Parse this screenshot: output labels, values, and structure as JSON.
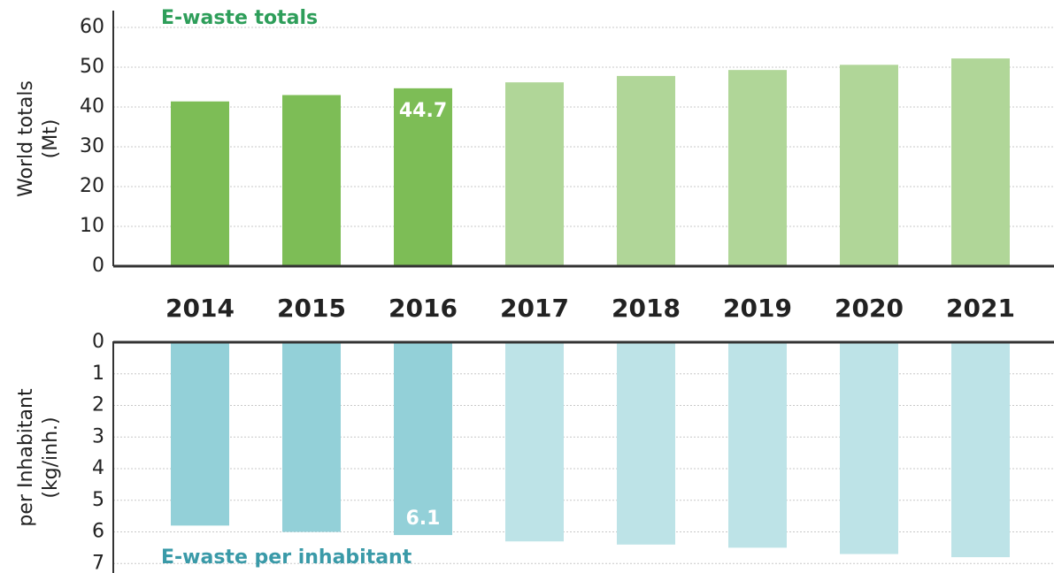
{
  "chart_data": [
    {
      "type": "bar",
      "title": "E-waste totals",
      "ylabel": [
        "World totals",
        "(Mt)"
      ],
      "categories": [
        "2014",
        "2015",
        "2016",
        "2017",
        "2018",
        "2019",
        "2020",
        "2021"
      ],
      "values": [
        41.4,
        43.0,
        44.7,
        46.2,
        47.8,
        49.3,
        50.6,
        52.2
      ],
      "value_labels": [
        null,
        null,
        "44.7",
        null,
        null,
        null,
        null,
        null
      ],
      "colors": [
        "#7dbd56",
        "#7dbd56",
        "#7dbd56",
        "#b0d698",
        "#b0d698",
        "#b0d698",
        "#b0d698",
        "#b0d698"
      ],
      "title_color": "#2e9e5a",
      "ylim": [
        0,
        64
      ],
      "yticks": [
        0,
        10,
        20,
        30,
        40,
        50,
        60
      ],
      "grid": true,
      "y_inverted": false
    },
    {
      "type": "bar",
      "title": "E-waste per inhabitant",
      "ylabel": [
        "per Inhabitant",
        "(kg/inh.)"
      ],
      "values": [
        5.8,
        6.0,
        6.1,
        6.3,
        6.4,
        6.5,
        6.7,
        6.8
      ],
      "value_labels": [
        null,
        null,
        "6.1",
        null,
        null,
        null,
        null,
        null
      ],
      "colors": [
        "#93d0d8",
        "#93d0d8",
        "#93d0d8",
        "#bde3e7",
        "#bde3e7",
        "#bde3e7",
        "#bde3e7",
        "#bde3e7"
      ],
      "title_color": "#3a9aa8",
      "ylim": [
        0,
        7.3
      ],
      "yticks": [
        0,
        1,
        2,
        3,
        4,
        5,
        6,
        7
      ],
      "grid": true,
      "y_inverted": true
    }
  ]
}
